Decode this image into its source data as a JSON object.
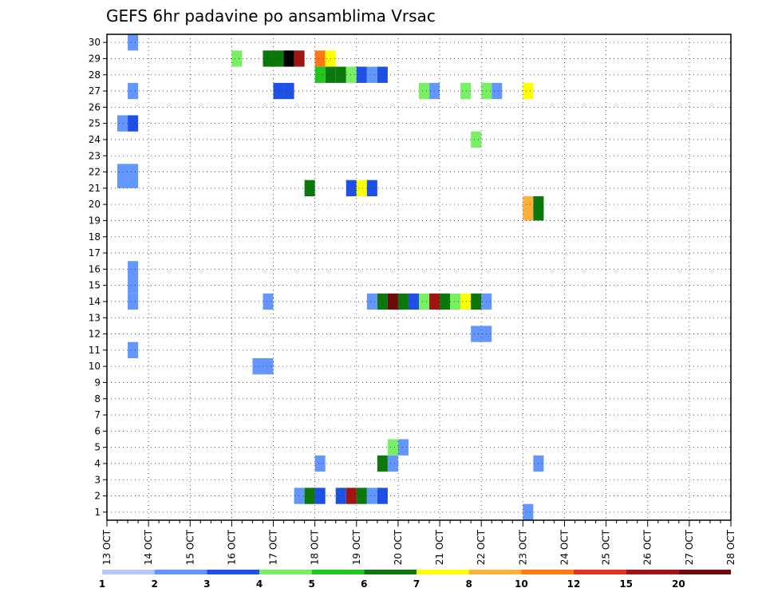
{
  "chart_data": {
    "type": "heatmap",
    "title": "GEFS 6hr padavine po ansamblima Vrsac",
    "xlabel": "",
    "ylabel": "",
    "x_ticks": [
      "13 OCT",
      "14 OCT",
      "15 OCT",
      "16 OCT",
      "17 OCT",
      "18 OCT",
      "19 OCT",
      "20 OCT",
      "21 OCT",
      "22 OCT",
      "23 OCT",
      "24 OCT",
      "25 OCT",
      "26 OCT",
      "27 OCT",
      "28 OCT"
    ],
    "y_ticks": [
      1,
      2,
      3,
      4,
      5,
      6,
      7,
      8,
      9,
      10,
      11,
      12,
      13,
      14,
      15,
      16,
      17,
      18,
      19,
      20,
      21,
      22,
      23,
      24,
      25,
      26,
      27,
      28,
      29,
      30
    ],
    "xlim": [
      0,
      60
    ],
    "ylim": [
      0.5,
      30.5
    ],
    "grid": true,
    "time_step": "6hr",
    "colorbar": {
      "labels": [
        "1",
        "2",
        "3",
        "4",
        "5",
        "6",
        "7",
        "8",
        "10",
        "12",
        "15",
        "20"
      ],
      "colors": [
        "#b4c8ff",
        "#6496ff",
        "#1e50e6",
        "#78f064",
        "#1ec81e",
        "#0a780a",
        "#ffff00",
        "#ffaf3c",
        "#ff7814",
        "#e6321e",
        "#a01414",
        "#6e0a0a"
      ]
    },
    "cells": [
      [
        2,
        30,
        1
      ],
      [
        12,
        29,
        3
      ],
      [
        15,
        29,
        5
      ],
      [
        16,
        29,
        5
      ],
      [
        17,
        29,
        12
      ],
      [
        18,
        29,
        10
      ],
      [
        20,
        29,
        8
      ],
      [
        21,
        29,
        6
      ],
      [
        21,
        28,
        5
      ],
      [
        22,
        28,
        5
      ],
      [
        23,
        28,
        3
      ],
      [
        24,
        28,
        2
      ],
      [
        20,
        28,
        4
      ],
      [
        25,
        28,
        1
      ],
      [
        26,
        28,
        2
      ],
      [
        2,
        27,
        1
      ],
      [
        16,
        27,
        2
      ],
      [
        17,
        27,
        2
      ],
      [
        30,
        27,
        3
      ],
      [
        31,
        27,
        1
      ],
      [
        34,
        27,
        3
      ],
      [
        36,
        27,
        3
      ],
      [
        37,
        27,
        1
      ],
      [
        40,
        27,
        6
      ],
      [
        1,
        25,
        1
      ],
      [
        2,
        25,
        2
      ],
      [
        35,
        24,
        3
      ],
      [
        1,
        22,
        1
      ],
      [
        2,
        22,
        1
      ],
      [
        1,
        21.5,
        1
      ],
      [
        2,
        21.5,
        1
      ],
      [
        19,
        21,
        5
      ],
      [
        23,
        21,
        2
      ],
      [
        24,
        21,
        6
      ],
      [
        25,
        21,
        2
      ],
      [
        40,
        20,
        7
      ],
      [
        41,
        20,
        5
      ],
      [
        40,
        19.5,
        7
      ],
      [
        41,
        19.5,
        5
      ],
      [
        2,
        16,
        1
      ],
      [
        2,
        15,
        1
      ],
      [
        2,
        14,
        1
      ],
      [
        15,
        14,
        1
      ],
      [
        25,
        14,
        1
      ],
      [
        26,
        14,
        5
      ],
      [
        27,
        14,
        11
      ],
      [
        28,
        14,
        5
      ],
      [
        29,
        14,
        2
      ],
      [
        30,
        14,
        3
      ],
      [
        31,
        14,
        10
      ],
      [
        32,
        14,
        5
      ],
      [
        33,
        14,
        3
      ],
      [
        34,
        14,
        6
      ],
      [
        35,
        14,
        5
      ],
      [
        36,
        14,
        1
      ],
      [
        35,
        12,
        1
      ],
      [
        36,
        12,
        1
      ],
      [
        2,
        11,
        1
      ],
      [
        14,
        10,
        1
      ],
      [
        15,
        10,
        1
      ],
      [
        20,
        4,
        1
      ],
      [
        26,
        4,
        5
      ],
      [
        27,
        4,
        1
      ],
      [
        41,
        4,
        1
      ],
      [
        27,
        5,
        3
      ],
      [
        28,
        5,
        1
      ],
      [
        18,
        2,
        1
      ],
      [
        19,
        2,
        5
      ],
      [
        20,
        2,
        2
      ],
      [
        22,
        2,
        2
      ],
      [
        23,
        2,
        10
      ],
      [
        24,
        2,
        5
      ],
      [
        25,
        2,
        1
      ],
      [
        26,
        2,
        2
      ],
      [
        40,
        1,
        1
      ]
    ]
  }
}
